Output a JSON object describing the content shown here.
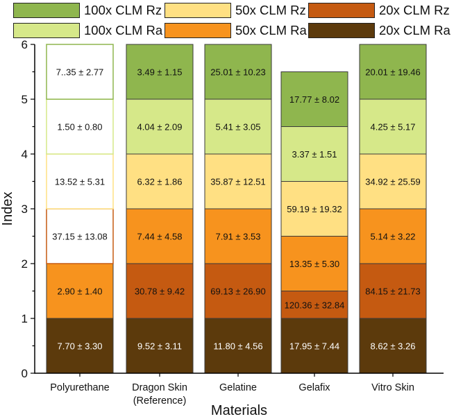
{
  "chart_data": {
    "type": "bar",
    "stacked": true,
    "xlabel": "Materials",
    "ylabel": "Index",
    "ylim": [
      0,
      6
    ],
    "yticks": [
      "0",
      "1",
      "2",
      "3",
      "4",
      "5",
      "6"
    ],
    "categories": [
      {
        "label_lines": [
          "Polyurethane"
        ]
      },
      {
        "label_lines": [
          "Dragon Skin",
          "(Reference)"
        ]
      },
      {
        "label_lines": [
          "Gelatine"
        ]
      },
      {
        "label_lines": [
          "Gelafix"
        ]
      },
      {
        "label_lines": [
          "Vitro Skin"
        ]
      }
    ],
    "legend": [
      {
        "name": "100x CLM Rz",
        "color": "#8fb64e"
      },
      {
        "name": "50x CLM Rz",
        "color": "#ffe083"
      },
      {
        "name": "20x CLM Rz",
        "color": "#c55a11"
      },
      {
        "name": "100x CLM Ra",
        "color": "#d6e889"
      },
      {
        "name": "50x CLM Ra",
        "color": "#f7931e"
      },
      {
        "name": "20x CLM Ra",
        "color": "#5c3a0c"
      }
    ],
    "bars": [
      {
        "segments": [
          {
            "series": "20x CLM Ra",
            "bottom": 0,
            "top": 1,
            "label": "7.70 ± 3.30",
            "filled": true
          },
          {
            "series": "50x CLM Ra",
            "bottom": 1,
            "top": 2,
            "label": "2.90 ± 1.40",
            "filled": true
          },
          {
            "series": "20x CLM Rz",
            "bottom": 2,
            "top": 3,
            "label": "37.15 ± 13.08",
            "filled": false
          },
          {
            "series": "50x CLM Rz",
            "bottom": 3,
            "top": 4,
            "label": "13.52 ± 5.31",
            "filled": false
          },
          {
            "series": "100x CLM Ra",
            "bottom": 4,
            "top": 5,
            "label": "1.50 ± 0.80",
            "filled": false
          },
          {
            "series": "100x CLM Rz",
            "bottom": 5,
            "top": 6,
            "label": "7..35 ± 2.77",
            "filled": false
          }
        ]
      },
      {
        "segments": [
          {
            "series": "20x CLM Ra",
            "bottom": 0,
            "top": 1,
            "label": "9.52 ± 3.11",
            "filled": true
          },
          {
            "series": "20x CLM Rz",
            "bottom": 1,
            "top": 2,
            "label": "30.78 ± 9.42",
            "filled": true
          },
          {
            "series": "50x CLM Ra",
            "bottom": 2,
            "top": 3,
            "label": "7.44 ± 4.58",
            "filled": true
          },
          {
            "series": "50x CLM Rz",
            "bottom": 3,
            "top": 4,
            "label": "6.32 ± 1.86",
            "filled": true
          },
          {
            "series": "100x CLM Ra",
            "bottom": 4,
            "top": 5,
            "label": "4.04 ± 2.09",
            "filled": true
          },
          {
            "series": "100x CLM Rz",
            "bottom": 5,
            "top": 6,
            "label": "3.49 ± 1.15",
            "filled": true
          }
        ]
      },
      {
        "segments": [
          {
            "series": "20x CLM Ra",
            "bottom": 0,
            "top": 1,
            "label": "11.80 ± 4.56",
            "filled": true
          },
          {
            "series": "20x CLM Rz",
            "bottom": 1,
            "top": 2,
            "label": "69.13 ± 26.90",
            "filled": true
          },
          {
            "series": "50x CLM Ra",
            "bottom": 2,
            "top": 3,
            "label": "7.91 ± 3.53",
            "filled": true
          },
          {
            "series": "50x CLM Rz",
            "bottom": 3,
            "top": 4,
            "label": "35.87 ± 12.51",
            "filled": true
          },
          {
            "series": "100x CLM Ra",
            "bottom": 4,
            "top": 5,
            "label": "5.41 ± 3.05",
            "filled": true
          },
          {
            "series": "100x CLM Rz",
            "bottom": 5,
            "top": 6,
            "label": "25.01 ± 10.23",
            "filled": true
          }
        ]
      },
      {
        "segments": [
          {
            "series": "20x CLM Ra",
            "bottom": 0,
            "top": 1,
            "label": "17.95 ± 7.44",
            "filled": true
          },
          {
            "series": "20x CLM Rz",
            "bottom": 1,
            "top": 1.5,
            "label": "120.36 ± 32.84",
            "filled": true
          },
          {
            "series": "50x CLM Ra",
            "bottom": 1.5,
            "top": 2.5,
            "label": "13.35 ± 5.30",
            "filled": true
          },
          {
            "series": "50x CLM Rz",
            "bottom": 2.5,
            "top": 3.5,
            "label": "59.19 ± 19.32",
            "filled": true
          },
          {
            "series": "100x CLM Ra",
            "bottom": 3.5,
            "top": 4.5,
            "label": "3.37 ± 1.51",
            "filled": true
          },
          {
            "series": "100x CLM Rz",
            "bottom": 4.5,
            "top": 5.5,
            "label": "17.77 ± 8.02",
            "filled": true
          }
        ]
      },
      {
        "segments": [
          {
            "series": "20x CLM Ra",
            "bottom": 0,
            "top": 1,
            "label": "8.62 ± 3.26",
            "filled": true
          },
          {
            "series": "20x CLM Rz",
            "bottom": 1,
            "top": 2,
            "label": "84.15 ± 21.73",
            "filled": true
          },
          {
            "series": "50x CLM Ra",
            "bottom": 2,
            "top": 3,
            "label": "5.14 ± 3.22",
            "filled": true
          },
          {
            "series": "50x CLM Rz",
            "bottom": 3,
            "top": 4,
            "label": "34.92 ± 25.59",
            "filled": true
          },
          {
            "series": "100x CLM Ra",
            "bottom": 4,
            "top": 5,
            "label": "4.25 ± 5.17",
            "filled": true
          },
          {
            "series": "100x CLM Rz",
            "bottom": 5,
            "top": 6,
            "label": "20.01 ± 19.46",
            "filled": true
          }
        ]
      }
    ]
  }
}
